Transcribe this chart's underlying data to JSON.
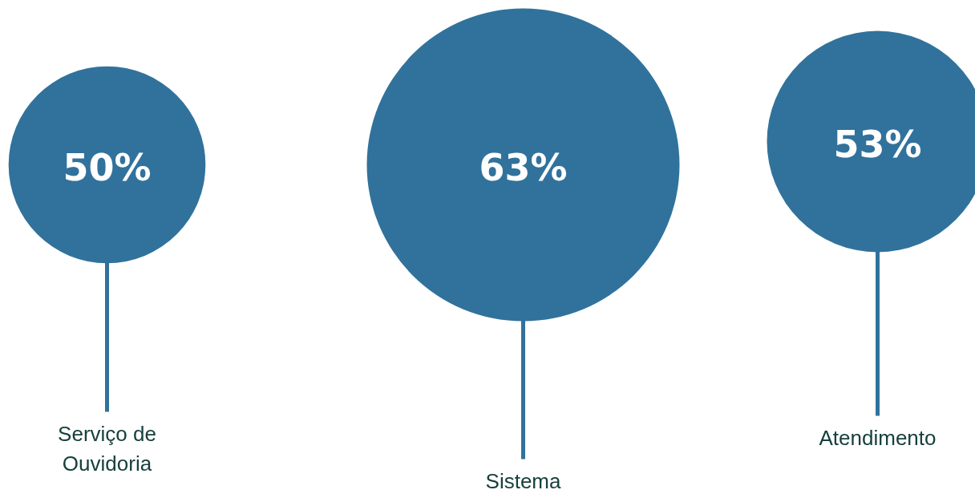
{
  "chart_data": {
    "type": "other",
    "categories": [
      "Serviço de Ouvidoria",
      "Sistema",
      "Atendimento"
    ],
    "values": [
      50,
      63,
      53
    ],
    "value_labels": [
      "50%",
      "63%",
      "53%"
    ],
    "color": "#31729c"
  }
}
